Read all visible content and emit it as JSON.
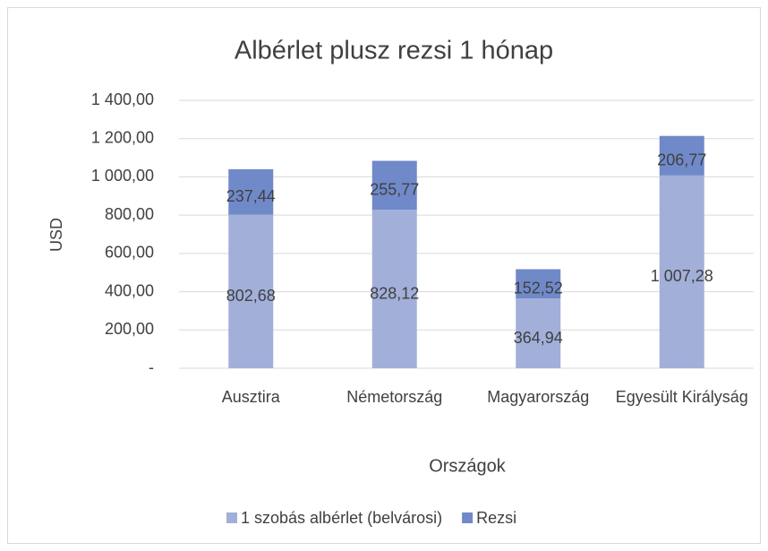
{
  "chart_data": {
    "type": "stacked_bar",
    "title": "Albérlet plusz rezsi 1 hónap",
    "y_label": "USD",
    "x_label": "Országok",
    "categories": [
      "Ausztira",
      "Németország",
      "Magyarország",
      "Egyesült Királyság"
    ],
    "series": [
      {
        "name": "1 szobás albérlet (belvárosi)",
        "color": "#a2afd9",
        "values": [
          802.68,
          828.12,
          364.94,
          1007.28
        ],
        "value_labels": [
          "802,68",
          "828,12",
          "364,94",
          "1 007,28"
        ]
      },
      {
        "name": "Rezsi",
        "color": "#7089c9",
        "values": [
          237.44,
          255.77,
          152.52,
          206.77
        ],
        "value_labels": [
          "237,44",
          "255,77",
          "152,52",
          "206,77"
        ]
      }
    ],
    "ylim": [
      0,
      1400
    ],
    "yticks": [
      {
        "value": 0,
        "label": "-"
      },
      {
        "value": 200,
        "label": "200,00"
      },
      {
        "value": 400,
        "label": "400,00"
      },
      {
        "value": 600,
        "label": "600,00"
      },
      {
        "value": 800,
        "label": "800,00"
      },
      {
        "value": 1000,
        "label": "1 000,00"
      },
      {
        "value": 1200,
        "label": "1 200,00"
      },
      {
        "value": 1400,
        "label": "1 400,00"
      }
    ],
    "grid": true,
    "legend": "bottom"
  }
}
